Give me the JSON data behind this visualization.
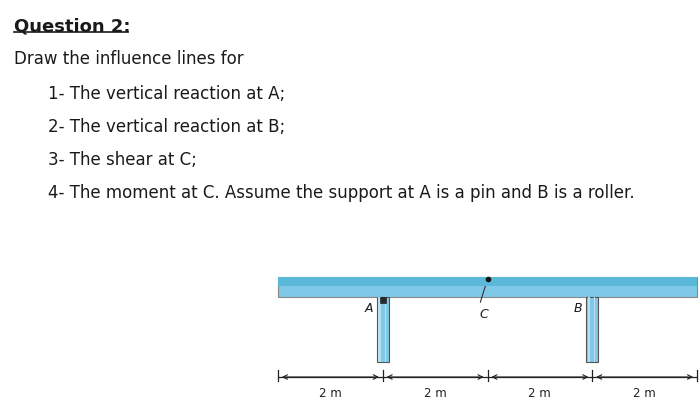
{
  "background_color": "#ffffff",
  "title_text": "Question 2:",
  "body_text": "Draw the influence lines for",
  "items": [
    "1- The vertical reaction at A;",
    "2- The vertical reaction at B;",
    "3- The shear at C;",
    "4- The moment at C. Assume the support at A is a pin and B is a roller."
  ],
  "segment_labels": [
    "2 m",
    "2 m",
    "2 m",
    "2 m"
  ],
  "pin_label": "A",
  "roller_label": "B",
  "c_label": "C",
  "beam_color": "#7fc8e8",
  "beam_top_color": "#5ab8d8",
  "beam_border_color": "#888888",
  "support_color": "#7fc8e8",
  "support_highlight_color": "#b8e0f0",
  "support_border_color": "#555555",
  "pin_mark_color": "#2a2a2a",
  "dim_line_color": "#222222",
  "text_color": "#1a1a1a"
}
